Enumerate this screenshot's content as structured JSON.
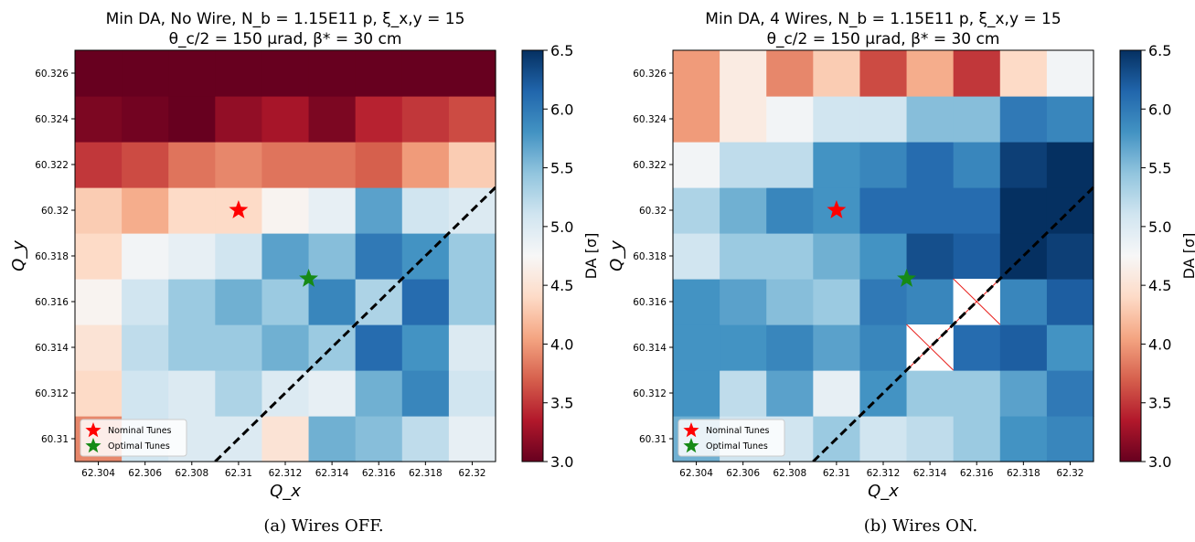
{
  "chart_data": [
    {
      "type": "heatmap",
      "title_line1": "Min DA, No Wire, N_b = 1.15E11 p, ξ_x,y = 15",
      "title_line2": "θ_c/2 = 150 μrad, β* = 30 cm",
      "xlabel": "Q_x",
      "ylabel": "Q_y",
      "colorbar_label": "DA [σ]",
      "colorbar_range": [
        3.0,
        6.5
      ],
      "colorbar_ticks": [
        "3.0",
        "3.5",
        "4.0",
        "4.5",
        "5.0",
        "5.5",
        "6.0",
        "6.5"
      ],
      "colormap": "RdBu",
      "x_ticks": [
        "62.304",
        "62.306",
        "62.308",
        "62.31",
        "62.312",
        "62.314",
        "62.316",
        "62.318",
        "62.32"
      ],
      "y_ticks": [
        "60.31",
        "60.312",
        "60.314",
        "60.316",
        "60.318",
        "60.32",
        "60.322",
        "60.324",
        "60.326"
      ],
      "x": [
        62.304,
        62.306,
        62.308,
        62.31,
        62.312,
        62.314,
        62.316,
        62.318,
        62.32
      ],
      "y": [
        60.31,
        60.312,
        60.314,
        60.316,
        60.318,
        60.32,
        60.322,
        60.324,
        60.326
      ],
      "values": [
        [
          3.9,
          5.1,
          5.0,
          5.0,
          4.5,
          5.6,
          5.5,
          5.2,
          4.9
        ],
        [
          4.4,
          5.1,
          5.0,
          5.3,
          5.0,
          4.9,
          5.6,
          5.9,
          5.1
        ],
        [
          4.5,
          5.2,
          5.4,
          5.4,
          5.6,
          5.4,
          6.1,
          5.8,
          5.0
        ],
        [
          4.7,
          5.1,
          5.4,
          5.6,
          5.4,
          5.9,
          5.3,
          6.1,
          5.4
        ],
        [
          4.4,
          4.8,
          4.9,
          5.1,
          5.7,
          5.5,
          6.0,
          5.8,
          5.4
        ],
        [
          4.3,
          4.1,
          4.4,
          4.4,
          4.7,
          4.9,
          5.7,
          5.1,
          5.0
        ],
        [
          3.5,
          3.6,
          3.8,
          3.9,
          3.8,
          3.8,
          3.7,
          4.0,
          4.3
        ],
        [
          3.1,
          3.05,
          3.0,
          3.2,
          3.3,
          3.1,
          3.4,
          3.5,
          3.6
        ],
        [
          3.0,
          3.0,
          3.0,
          3.0,
          3.0,
          3.0,
          3.0,
          3.0,
          3.0
        ]
      ],
      "crossed_cells": [],
      "nominal_tune": {
        "x": 62.31,
        "y": 60.32
      },
      "optimal_tune": {
        "x": 62.313,
        "y": 60.317
      },
      "diagonal_line": {
        "x1": 62.309,
        "y1": 60.309,
        "x2": 62.321,
        "y2": 60.321
      },
      "legend": {
        "placement": "lower-left",
        "items": [
          "Nominal Tunes",
          "Optimal Tunes"
        ]
      },
      "caption": "(a) Wires OFF."
    },
    {
      "type": "heatmap",
      "title_line1": "Min DA, 4 Wires, N_b = 1.15E11 p, ξ_x,y = 15",
      "title_line2": "θ_c/2 = 150 μrad, β* = 30 cm",
      "xlabel": "Q_x",
      "ylabel": "Q_y",
      "colorbar_label": "DA [σ]",
      "colorbar_range": [
        3.0,
        6.5
      ],
      "colorbar_ticks": [
        "3.0",
        "3.5",
        "4.0",
        "4.5",
        "5.0",
        "5.5",
        "6.0",
        "6.5"
      ],
      "colormap": "RdBu",
      "x_ticks": [
        "62.304",
        "62.306",
        "62.308",
        "62.31",
        "62.312",
        "62.314",
        "62.316",
        "62.318",
        "62.32"
      ],
      "y_ticks": [
        "60.31",
        "60.312",
        "60.314",
        "60.316",
        "60.318",
        "60.32",
        "60.322",
        "60.324",
        "60.326"
      ],
      "x": [
        62.304,
        62.306,
        62.308,
        62.31,
        62.312,
        62.314,
        62.316,
        62.318,
        62.32
      ],
      "y": [
        60.31,
        60.312,
        60.314,
        60.316,
        60.318,
        60.32,
        60.322,
        60.324,
        60.326
      ],
      "values": [
        [
          5.6,
          5.1,
          5.1,
          5.4,
          5.1,
          5.2,
          5.4,
          5.8,
          5.9
        ],
        [
          5.8,
          5.2,
          5.7,
          4.9,
          5.8,
          5.4,
          5.4,
          5.7,
          6.0
        ],
        [
          5.8,
          5.8,
          5.9,
          5.7,
          5.9,
          null,
          6.1,
          6.2,
          5.8
        ],
        [
          5.8,
          5.7,
          5.5,
          5.4,
          6.0,
          5.9,
          null,
          5.9,
          6.2
        ],
        [
          5.1,
          5.4,
          5.4,
          5.6,
          5.8,
          6.3,
          6.2,
          6.5,
          6.4
        ],
        [
          5.3,
          5.6,
          5.9,
          5.8,
          6.1,
          6.1,
          6.1,
          6.5,
          6.5
        ],
        [
          4.8,
          5.2,
          5.2,
          5.8,
          5.9,
          6.1,
          5.9,
          6.4,
          6.5
        ],
        [
          4.0,
          4.6,
          4.8,
          5.1,
          5.1,
          5.5,
          5.5,
          6.0,
          5.9
        ],
        [
          4.0,
          4.6,
          3.9,
          4.3,
          3.6,
          4.1,
          3.5,
          4.4,
          4.8
        ]
      ],
      "crossed_cells": [
        {
          "x": 62.314,
          "y": 60.314
        },
        {
          "x": 62.316,
          "y": 60.316
        }
      ],
      "nominal_tune": {
        "x": 62.31,
        "y": 60.32
      },
      "optimal_tune": {
        "x": 62.313,
        "y": 60.317
      },
      "diagonal_line": {
        "x1": 62.309,
        "y1": 60.309,
        "x2": 62.321,
        "y2": 60.321
      },
      "legend": {
        "placement": "lower-left",
        "items": [
          "Nominal Tunes",
          "Optimal Tunes"
        ]
      },
      "caption": "(b) Wires ON."
    }
  ]
}
